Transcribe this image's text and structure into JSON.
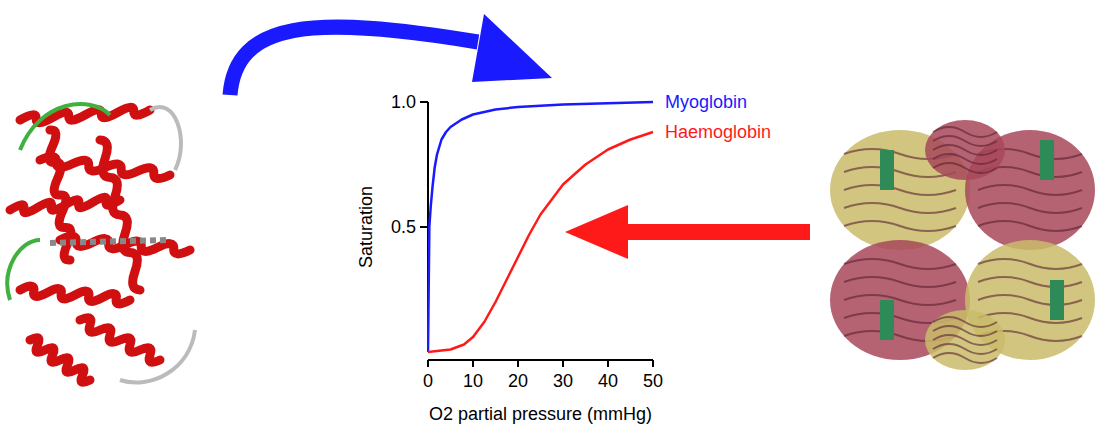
{
  "chart_data": {
    "type": "line",
    "x_label": "O2 partial pressure (mmHg)",
    "y_label": "Saturation",
    "xlim": [
      0,
      50
    ],
    "xticks": [
      0,
      10,
      20,
      30,
      40,
      50
    ],
    "ylim": [
      0,
      1
    ],
    "yticks": [
      0.5,
      {
        "value": 1,
        "label": "1.0"
      }
    ],
    "grid": false,
    "series": [
      {
        "name": "Myoglobin",
        "color": "#1a1aff",
        "x": [
          0,
          0.3,
          0.6,
          1,
          1.5,
          2,
          3,
          4,
          5,
          7.5,
          10,
          15,
          20,
          30,
          40,
          50
        ],
        "values": [
          0,
          0.5,
          0.58,
          0.66,
          0.74,
          0.79,
          0.85,
          0.88,
          0.9,
          0.93,
          0.95,
          0.97,
          0.98,
          0.99,
          0.995,
          1.0
        ]
      },
      {
        "name": "Haemoglobin",
        "color": "#ff1a1a",
        "x": [
          0,
          5,
          8,
          10,
          12.5,
          15,
          17.5,
          20,
          22.5,
          25,
          27.5,
          30,
          35,
          40,
          45,
          50
        ],
        "values": [
          0,
          0.01,
          0.03,
          0.06,
          0.12,
          0.2,
          0.29,
          0.38,
          0.47,
          0.55,
          0.61,
          0.67,
          0.75,
          0.81,
          0.85,
          0.88
        ]
      }
    ]
  }
}
